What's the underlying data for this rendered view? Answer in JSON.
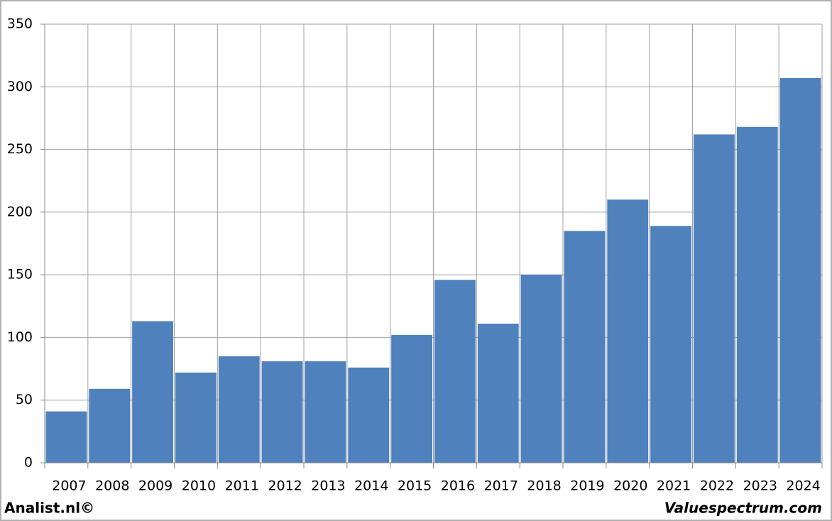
{
  "chart_data": {
    "type": "bar",
    "categories": [
      "2007",
      "2008",
      "2009",
      "2010",
      "2011",
      "2012",
      "2013",
      "2014",
      "2015",
      "2016",
      "2017",
      "2018",
      "2019",
      "2020",
      "2021",
      "2022",
      "2023",
      "2024"
    ],
    "values": [
      41,
      59,
      113,
      72,
      85,
      81,
      81,
      76,
      102,
      146,
      111,
      150,
      185,
      210,
      189,
      262,
      268,
      307
    ],
    "color": "#4f81bd",
    "ylim": [
      0,
      350
    ],
    "yticks": [
      0,
      50,
      100,
      150,
      200,
      250,
      300,
      350
    ],
    "grid": true
  },
  "footer": {
    "left": "Analist.nl©",
    "right": "Valuespectrum.com"
  }
}
